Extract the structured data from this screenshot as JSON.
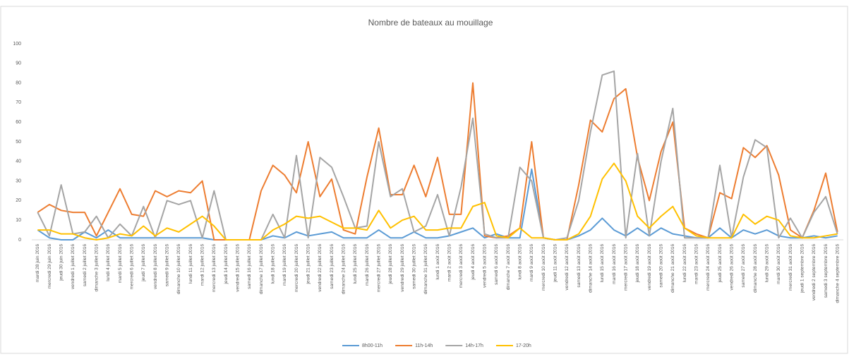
{
  "chart_data": {
    "type": "line",
    "title": "Nombre de bateaux au mouillage",
    "categories": [
      "mardi 28 juin 2016",
      "mercredi 29 juin 2016",
      "jeudi 30 juin 2016",
      "vendredi 1 juillet 2016",
      "samedi 2 juillet 2016",
      "dimanche 3 juillet 2016",
      "lundi 4 juillet 2016",
      "mardi 5 juillet 2016",
      "mercredi 6 juillet 2016",
      "jeudi 7 juillet 2016",
      "vendredi 8 juillet 2016",
      "samedi 9 juillet 2016",
      "dimanche 10 juillet 2016",
      "lundi 11 juillet 2016",
      "mardi 12 juillet 2016",
      "mercredi 13 juillet 2016",
      "jeudi 14 juillet 2016",
      "vendredi 15 juillet 2016",
      "samedi 16 juillet 2016",
      "dimanche 17 juillet 2016",
      "lundi 18 juillet 2016",
      "mardi 19 juillet 2016",
      "mercredi 20 juillet 2016",
      "jeudi 21 juillet 2016",
      "vendredi 22 juillet 2016",
      "samedi 23 juillet 2016",
      "dimanche 24 juillet 2016",
      "lundi 25 juillet 2016",
      "mardi 26 juillet 2016",
      "mercredi 27 juillet 2016",
      "jeudi 28 juillet 2016",
      "vendredi 29 juillet 2016",
      "samedi 30 juillet 2016",
      "dimanche 31 juillet 2016",
      "lundi 1 août 2016",
      "mardi 2 août 2016",
      "mercredi 3 août 2016",
      "jeudi 4 août 2016",
      "vendredi 5 août 2016",
      "samedi 6 août 2016",
      "dimanche 7 août 2016",
      "lundi 8 août 2016",
      "mardi 9 août 2016",
      "mercredi 10 août 2016",
      "jeudi 11 août 2016",
      "vendredi 12 août 2016",
      "samedi 13 août 2016",
      "dimanche 14 août 2016",
      "lundi 15 août 2016",
      "mardi 16 août 2016",
      "mercredi 17 août 2016",
      "jeudi 18 août 2016",
      "vendredi 19 août 2016",
      "samedi 20 août 2016",
      "dimanche 21 août 2016",
      "lundi 22 août 2016",
      "mardi 23 août 2016",
      "mercredi 24 août 2016",
      "jeudi 25 août 2016",
      "vendredi 26 août 2016",
      "samedi 27 août 2016",
      "dimanche 28 août 2016",
      "lundi 29 août 2016",
      "mardi 30 août 2016",
      "mercredi 31 août 2016",
      "jeudi 1 septembre 2016",
      "vendredi 2 septembre 2016",
      "samedi 3 septembre 2016",
      "dimanche 4 septembre 2016"
    ],
    "series": [
      {
        "name": "8h00-11h",
        "color": "#5b9bd5",
        "values": [
          5,
          1,
          0,
          0,
          4,
          1,
          5,
          1,
          1,
          1,
          1,
          1,
          1,
          1,
          1,
          0,
          0,
          0,
          0,
          0,
          2,
          1,
          4,
          2,
          3,
          4,
          1,
          1,
          1,
          5,
          1,
          1,
          4,
          1,
          1,
          2,
          4,
          6,
          1,
          3,
          1,
          1,
          36,
          1,
          0,
          0,
          2,
          5,
          11,
          5,
          2,
          6,
          2,
          6,
          3,
          2,
          1,
          1,
          6,
          1,
          5,
          3,
          5,
          2,
          1,
          1,
          2,
          1,
          2
        ]
      },
      {
        "name": "11h-14h",
        "color": "#ed7d31",
        "values": [
          14,
          18,
          15,
          14,
          14,
          2,
          14,
          26,
          13,
          12,
          25,
          22,
          25,
          24,
          30,
          0,
          0,
          0,
          0,
          25,
          38,
          33,
          24,
          50,
          22,
          31,
          5,
          3,
          32,
          57,
          23,
          23,
          38,
          22,
          42,
          13,
          13,
          80,
          2,
          1,
          2,
          6,
          50,
          1,
          0,
          0,
          28,
          61,
          55,
          72,
          77,
          42,
          20,
          45,
          60,
          6,
          3,
          1,
          24,
          21,
          47,
          42,
          48,
          33,
          5,
          1,
          15,
          34,
          4
        ]
      },
      {
        "name": "14h-17h",
        "color": "#a5a5a5",
        "values": [
          14,
          2,
          28,
          3,
          4,
          12,
          1,
          8,
          2,
          17,
          1,
          20,
          18,
          20,
          1,
          25,
          0,
          0,
          0,
          0,
          13,
          1,
          43,
          1,
          42,
          37,
          22,
          6,
          7,
          50,
          22,
          26,
          4,
          7,
          23,
          2,
          27,
          62,
          3,
          1,
          1,
          37,
          30,
          1,
          0,
          1,
          20,
          55,
          84,
          86,
          1,
          44,
          2,
          40,
          67,
          1,
          1,
          1,
          38,
          1,
          32,
          51,
          47,
          1,
          11,
          1,
          14,
          22,
          3
        ]
      },
      {
        "name": "17-20h",
        "color": "#ffc000",
        "values": [
          5,
          5,
          3,
          3,
          1,
          0,
          1,
          3,
          2,
          7,
          2,
          6,
          4,
          8,
          12,
          7,
          0,
          0,
          0,
          0,
          5,
          8,
          12,
          11,
          12,
          9,
          6,
          6,
          5,
          15,
          6,
          10,
          12,
          5,
          5,
          6,
          6,
          17,
          19,
          2,
          1,
          6,
          1,
          1,
          0,
          0,
          3,
          12,
          31,
          39,
          30,
          12,
          6,
          12,
          17,
          6,
          2,
          1,
          1,
          1,
          13,
          8,
          12,
          10,
          2,
          1,
          1,
          2,
          3
        ]
      }
    ],
    "ylim": [
      0,
      100
    ],
    "yticks": [
      0,
      10,
      20,
      30,
      40,
      50,
      60,
      70,
      80,
      90,
      100
    ],
    "grid": false,
    "legend": "bottom"
  }
}
